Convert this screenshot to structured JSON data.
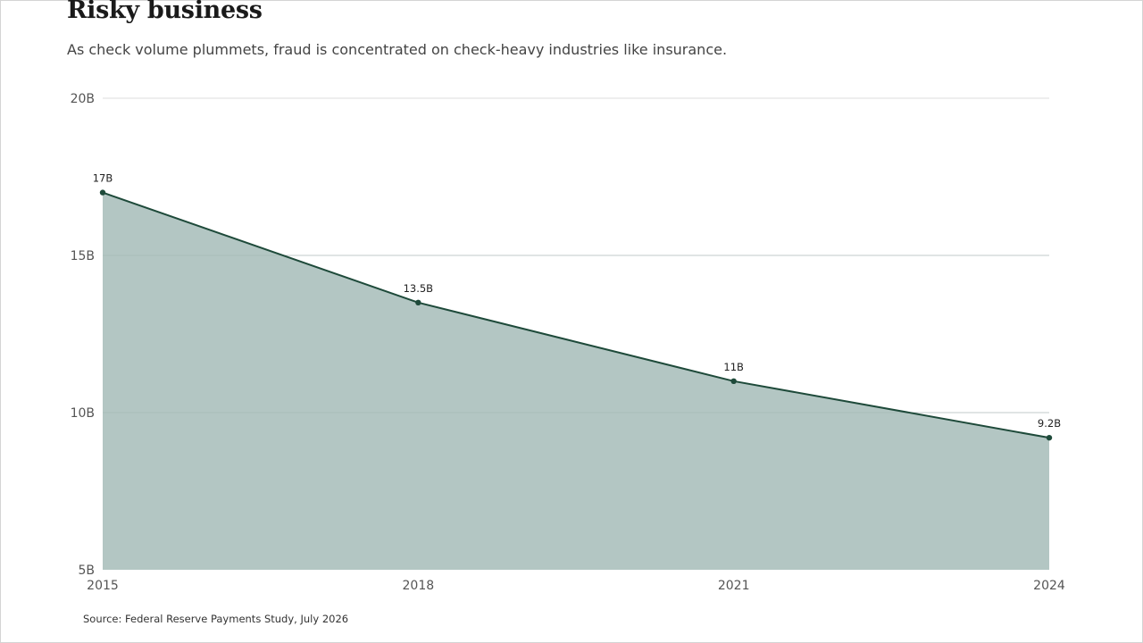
{
  "header": {
    "title": "Risky business",
    "subtitle": "As check volume plummets, fraud is concentrated on check-heavy industries like insurance."
  },
  "footer": {
    "source": "Source: Federal Reserve Payments Study, July 2026"
  },
  "colors": {
    "line": "#1e4a3a",
    "area": "#b3c6c3",
    "grid": "#dddddd",
    "marker": "#1e4a3a"
  },
  "chart_data": {
    "type": "area",
    "title": "Risky business",
    "subtitle": "As check volume plummets, fraud is concentrated on check-heavy industries like insurance.",
    "xlabel": "",
    "ylabel": "",
    "x": [
      2015,
      2018,
      2021,
      2024
    ],
    "x_tick_labels": [
      "2015",
      "2018",
      "2021",
      "2024"
    ],
    "series": [
      {
        "values": [
          17,
          13.5,
          11,
          9.2
        ],
        "data_labels": [
          "17B",
          "13.5B",
          "11B",
          "9.2B"
        ]
      }
    ],
    "ylim": [
      5,
      20
    ],
    "y_ticks": [
      5,
      10,
      15,
      20
    ],
    "y_tick_labels": [
      "5B",
      "10B",
      "15B",
      "20B"
    ],
    "grid": true,
    "legend": "none"
  }
}
